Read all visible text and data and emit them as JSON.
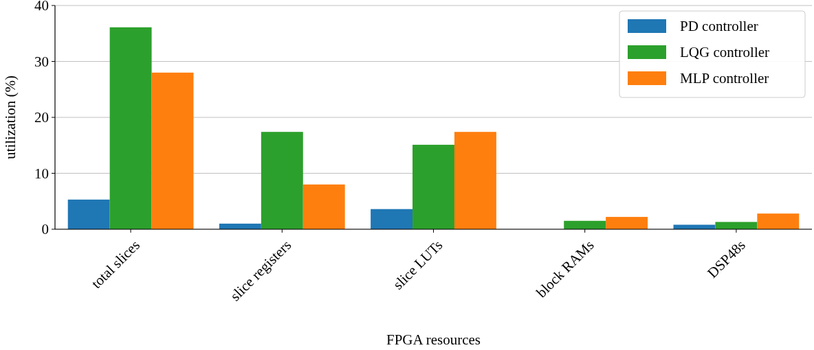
{
  "chart_data": {
    "type": "bar",
    "xlabel": "FPGA resources",
    "ylabel": "utilization (%)",
    "categories": [
      "total slices",
      "slice registers",
      "slice LUTs",
      "block RAMs",
      "DSP48s"
    ],
    "series": [
      {
        "name": "PD controller",
        "color": "#1f77b4",
        "values": [
          5.3,
          1.0,
          3.6,
          0,
          0.8
        ]
      },
      {
        "name": "LQG controller",
        "color": "#2ca02c",
        "values": [
          36.1,
          17.4,
          15.1,
          1.5,
          1.3
        ]
      },
      {
        "name": "MLP controller",
        "color": "#ff7f0e",
        "values": [
          28.0,
          8.0,
          17.4,
          2.2,
          2.8
        ]
      }
    ],
    "ylim": [
      0,
      40
    ],
    "yticks": [
      0,
      10,
      20,
      30,
      40
    ],
    "grid": "y",
    "legend": "top right"
  }
}
